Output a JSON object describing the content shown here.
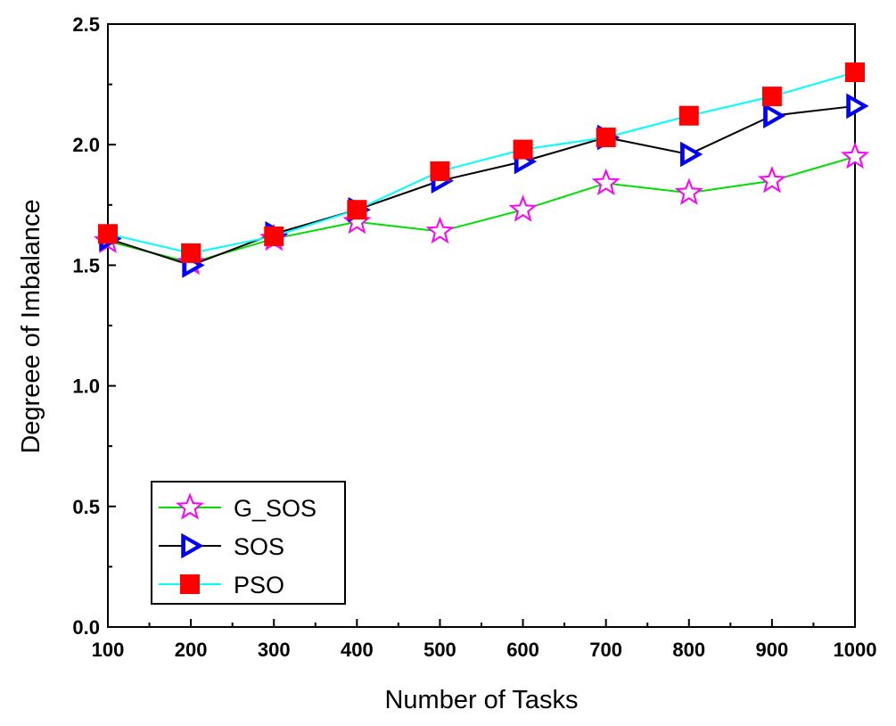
{
  "chart_data": {
    "type": "line",
    "title": "",
    "xlabel": "Number of Tasks",
    "ylabel": "Degreee of Imbalance",
    "x": [
      100,
      200,
      300,
      400,
      500,
      600,
      700,
      800,
      900,
      1000
    ],
    "xlim": [
      100,
      1000
    ],
    "ylim": [
      0.0,
      2.5
    ],
    "x_ticks": [
      "100",
      "200",
      "300",
      "400",
      "500",
      "600",
      "700",
      "800",
      "900",
      "1000"
    ],
    "y_ticks": [
      "0.0",
      "0.5",
      "1.0",
      "1.5",
      "2.0",
      "2.5"
    ],
    "grid": false,
    "legend_position": "bottom-left",
    "series": [
      {
        "name": "G_SOS",
        "line_color": "#00dd00",
        "marker": "star",
        "marker_color": "#ff00ff",
        "values": [
          1.6,
          1.51,
          1.61,
          1.68,
          1.64,
          1.73,
          1.84,
          1.8,
          1.85,
          1.95
        ]
      },
      {
        "name": "SOS",
        "line_color": "#000000",
        "marker": "triangle-right",
        "marker_color": "#0000ff",
        "values": [
          1.61,
          1.5,
          1.63,
          1.73,
          1.85,
          1.93,
          2.03,
          1.96,
          2.12,
          2.16
        ]
      },
      {
        "name": "PSO",
        "line_color": "#00ffff",
        "marker": "square",
        "marker_color": "#ff0000",
        "values": [
          1.63,
          1.55,
          1.62,
          1.73,
          1.89,
          1.98,
          2.03,
          2.12,
          2.2,
          2.3
        ]
      }
    ]
  }
}
